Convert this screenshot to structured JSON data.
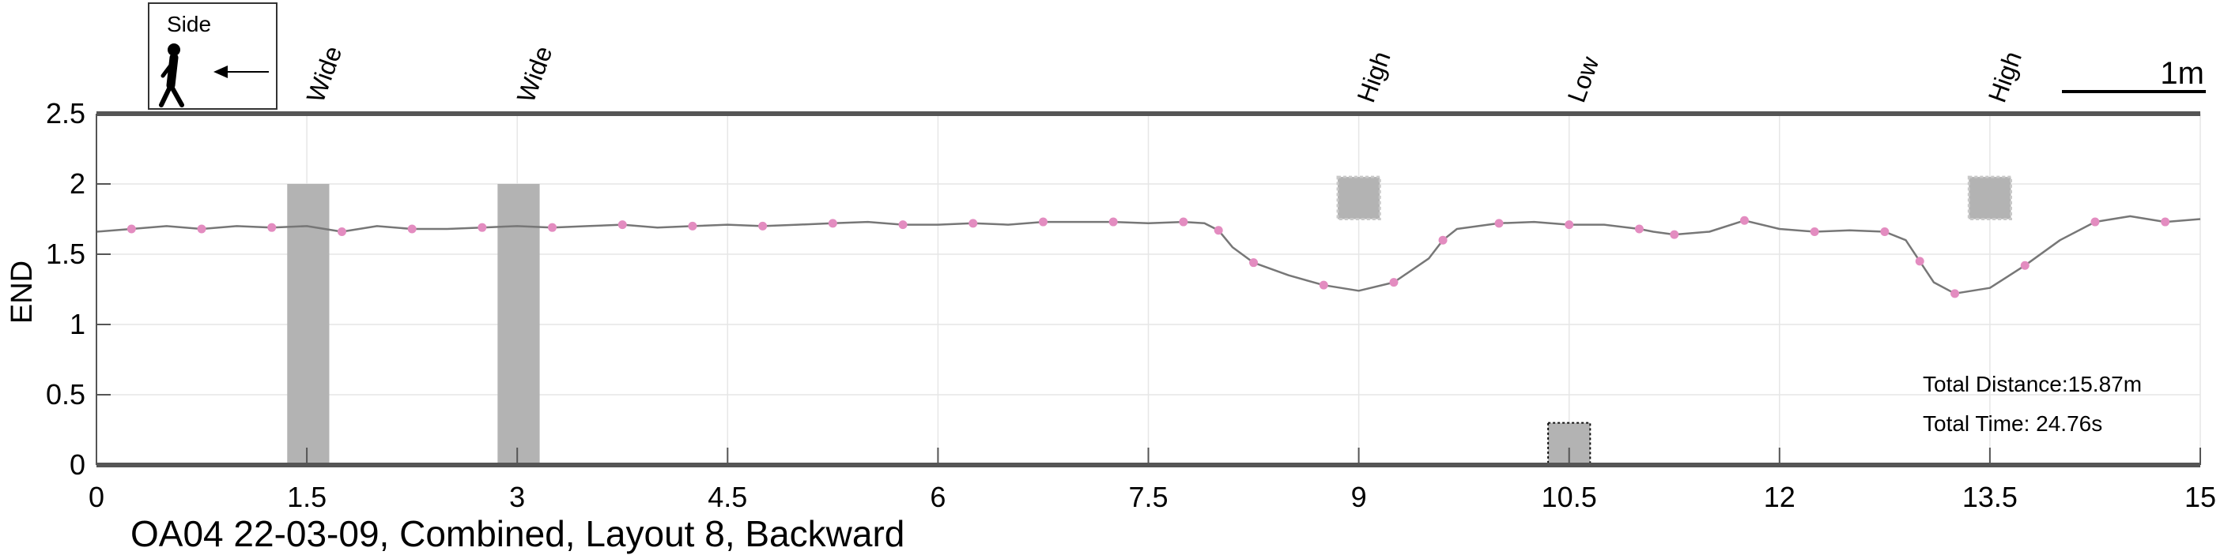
{
  "chart_data": {
    "type": "line",
    "title": "OA04 22-03-09, Combined, Layout 8, Backward",
    "xlabel": "",
    "ylabel": "END",
    "xlim": [
      0,
      15
    ],
    "ylim": [
      0,
      2.5
    ],
    "grid": true,
    "xticks": [
      "0",
      "1.5",
      "3",
      "4.5",
      "6",
      "7.5",
      "9",
      "10.5",
      "12",
      "13.5",
      "15"
    ],
    "yticks": [
      "0",
      "0.5",
      "1",
      "1.5",
      "2",
      "2.5"
    ],
    "direction_legend": {
      "label": "Side"
    },
    "scale_bar": {
      "label": "1m",
      "length_m": 1
    },
    "obstacles": [
      {
        "label": "Wide",
        "kind": "wide",
        "x": [
          1.36,
          1.66
        ],
        "y": [
          0,
          2.0
        ]
      },
      {
        "label": "Wide",
        "kind": "wide",
        "x": [
          2.86,
          3.16
        ],
        "y": [
          0,
          2.0
        ]
      },
      {
        "label": "High",
        "kind": "high",
        "x": [
          8.85,
          9.15
        ],
        "y": [
          1.75,
          2.05
        ]
      },
      {
        "label": "Low",
        "kind": "low",
        "x": [
          10.35,
          10.65
        ],
        "y": [
          0,
          0.3
        ]
      },
      {
        "label": "High",
        "kind": "high",
        "x": [
          13.35,
          13.65
        ],
        "y": [
          1.75,
          2.05
        ]
      }
    ],
    "series": [
      {
        "color": "#777777",
        "marker_color": "#e38cc0",
        "x": [
          0,
          0.25,
          0.5,
          0.75,
          1.0,
          1.25,
          1.5,
          1.75,
          2.0,
          2.25,
          2.5,
          2.75,
          3.0,
          3.25,
          3.5,
          3.75,
          4.0,
          4.25,
          4.5,
          4.75,
          5.0,
          5.25,
          5.5,
          5.75,
          6.0,
          6.25,
          6.5,
          6.75,
          7.0,
          7.25,
          7.5,
          7.75,
          7.9,
          8.0,
          8.1,
          8.25,
          8.5,
          8.75,
          9.0,
          9.25,
          9.5,
          9.6,
          9.7,
          10.0,
          10.25,
          10.5,
          10.75,
          11.0,
          11.1,
          11.25,
          11.5,
          11.75,
          12.0,
          12.25,
          12.5,
          12.75,
          12.9,
          13.0,
          13.1,
          13.25,
          13.5,
          13.75,
          14.0,
          14.25,
          14.5,
          14.75,
          15.0
        ],
        "y": [
          1.66,
          1.68,
          1.7,
          1.68,
          1.7,
          1.69,
          1.7,
          1.66,
          1.7,
          1.68,
          1.68,
          1.69,
          1.7,
          1.69,
          1.7,
          1.71,
          1.69,
          1.7,
          1.71,
          1.7,
          1.71,
          1.72,
          1.73,
          1.71,
          1.71,
          1.72,
          1.71,
          1.73,
          1.73,
          1.73,
          1.72,
          1.73,
          1.72,
          1.67,
          1.55,
          1.44,
          1.35,
          1.28,
          1.24,
          1.3,
          1.47,
          1.6,
          1.68,
          1.72,
          1.73,
          1.71,
          1.71,
          1.68,
          1.66,
          1.64,
          1.66,
          1.74,
          1.68,
          1.66,
          1.67,
          1.66,
          1.6,
          1.45,
          1.3,
          1.22,
          1.26,
          1.42,
          1.6,
          1.73,
          1.77,
          1.73,
          1.75
        ]
      }
    ],
    "annotations": [
      "Total Distance:15.87m",
      "Total Time: 24.76s"
    ]
  }
}
